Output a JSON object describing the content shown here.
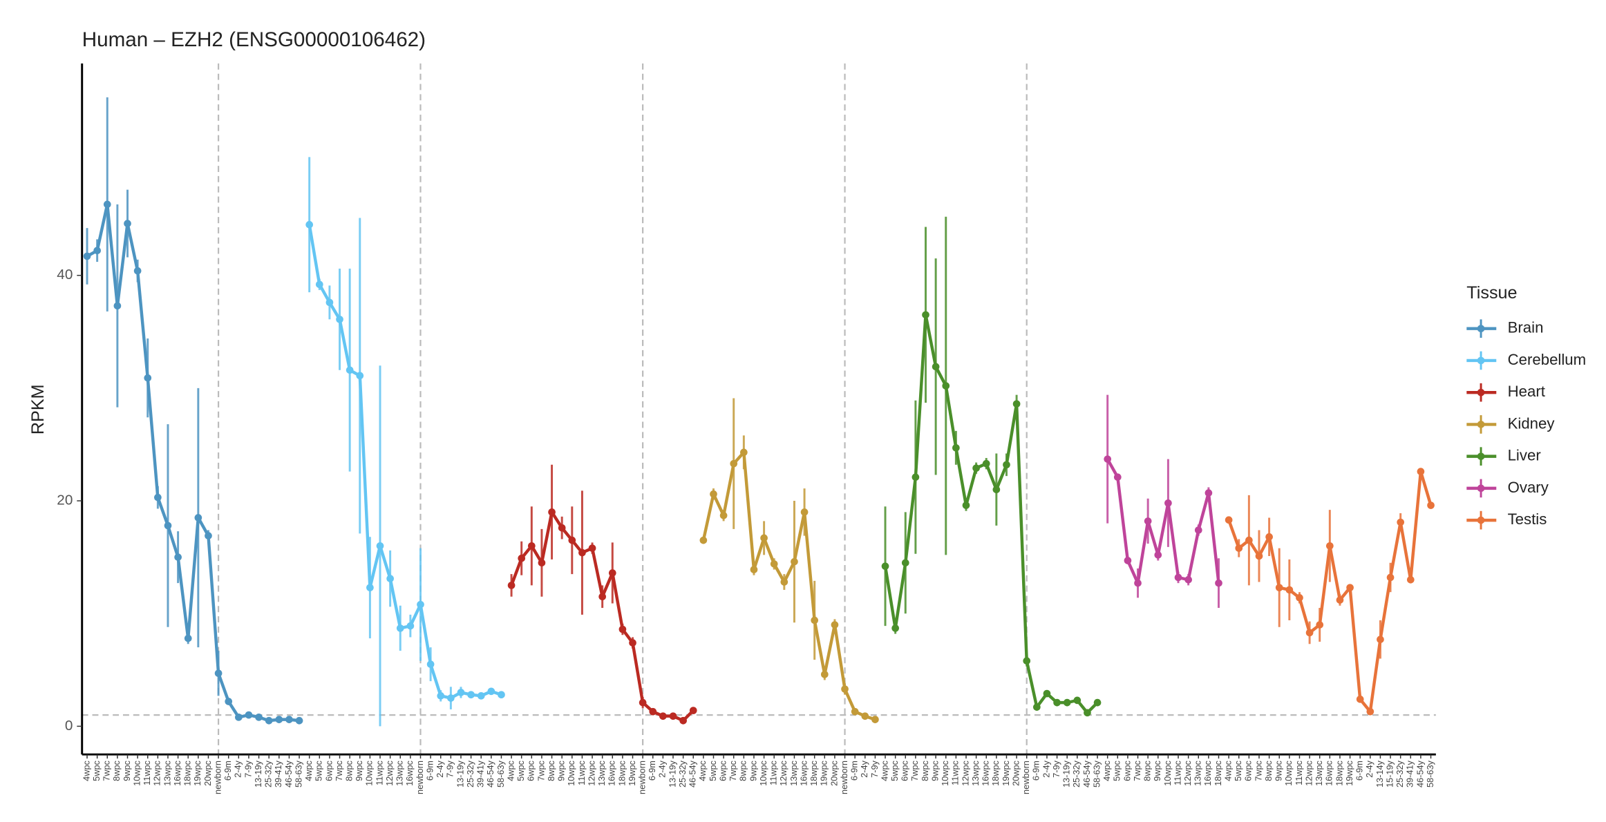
{
  "chart_data": {
    "type": "line",
    "title": "Human – EZH2 (ENSG00000106462)",
    "y_label": "RPKM",
    "legend_title": "Tissue",
    "legend": "right",
    "ylim": [
      -2.5,
      58.8
    ],
    "yticks": [
      0,
      20,
      40
    ],
    "hline": 1,
    "vline_category": "newborn",
    "series": [
      {
        "name": "Brain",
        "color": "#4d94c1",
        "categories": [
          "4wpc",
          "5wpc",
          "7wpc",
          "8wpc",
          "9wpc",
          "10wpc",
          "11wpc",
          "12wpc",
          "13wpc",
          "16wpc",
          "18wpc",
          "19wpc",
          "20wpc",
          "newborn",
          "6-9m",
          "2-4y",
          "7-9y",
          "13-19y",
          "25-32y",
          "39-41y",
          "46-54y",
          "58-63y"
        ],
        "values": [
          41.7,
          42.2,
          46.3,
          37.3,
          44.6,
          40.4,
          30.9,
          20.3,
          17.8,
          15.0,
          7.8,
          18.5,
          16.9,
          4.7,
          2.2,
          0.8,
          1.0,
          0.8,
          0.5,
          0.6,
          0.6,
          0.5
        ],
        "errors": [
          2.5,
          1,
          9.5,
          9,
          3,
          1,
          3.5,
          1,
          9,
          2.3,
          0.5,
          11.5,
          0.5,
          2,
          0.3,
          0.3,
          0.3,
          0.3,
          0.3,
          0.3,
          0.3,
          0.3
        ]
      },
      {
        "name": "Cerebellum",
        "color": "#63c5f3",
        "categories": [
          "4wpc",
          "5wpc",
          "6wpc",
          "7wpc",
          "8wpc",
          "9wpc",
          "10wpc",
          "11wpc",
          "12wpc",
          "13wpc",
          "16wpc",
          "newborn",
          "6-9m",
          "2-4y",
          "7-9y",
          "13-19y",
          "25-32y",
          "39-41y",
          "46-54y",
          "58-63y"
        ],
        "values": [
          44.5,
          39.2,
          37.6,
          36.1,
          31.6,
          31.1,
          12.3,
          16.0,
          13.1,
          8.7,
          8.9,
          10.8,
          5.5,
          2.7,
          2.5,
          3.0,
          2.8,
          2.7,
          3.1,
          2.8
        ],
        "errors": [
          6,
          0.5,
          1.5,
          4.5,
          9,
          14,
          4.5,
          16,
          2.5,
          2,
          1,
          5,
          1.5,
          0.5,
          1,
          0.5,
          0.3,
          0.3,
          0.3,
          0.3
        ]
      },
      {
        "name": "Heart",
        "color": "#bb2a22",
        "categories": [
          "4wpc",
          "5wpc",
          "6wpc",
          "7wpc",
          "8wpc",
          "9wpc",
          "10wpc",
          "11wpc",
          "12wpc",
          "13wpc",
          "16wpc",
          "18wpc",
          "19wpc",
          "newborn",
          "6-9m",
          "2-4y",
          "13-19y",
          "25-32y",
          "46-54y"
        ],
        "values": [
          12.5,
          14.9,
          16.0,
          14.5,
          19.0,
          17.6,
          16.5,
          15.4,
          15.8,
          11.5,
          13.6,
          8.6,
          7.4,
          2.1,
          1.3,
          0.9,
          0.9,
          0.5,
          1.4
        ],
        "errors": [
          1,
          1.5,
          3.5,
          3,
          4.2,
          1,
          3,
          5.5,
          0.5,
          1,
          2.7,
          0.5,
          0.5,
          0.5,
          0.3,
          0.3,
          0.3,
          0.3,
          0.3
        ]
      },
      {
        "name": "Kidney",
        "color": "#c39a38",
        "categories": [
          "4wpc",
          "5wpc",
          "6wpc",
          "7wpc",
          "8wpc",
          "9wpc",
          "10wpc",
          "11wpc",
          "12wpc",
          "13wpc",
          "16wpc",
          "18wpc",
          "19wpc",
          "20wpc",
          "newborn",
          "6-9m",
          "2-4y",
          "7-9y"
        ],
        "values": [
          16.5,
          20.6,
          18.7,
          23.3,
          24.3,
          13.9,
          16.7,
          14.4,
          12.8,
          14.6,
          19.0,
          9.4,
          4.6,
          9.0,
          3.3,
          1.3,
          0.9,
          0.6
        ],
        "errors": [
          0.3,
          0.5,
          0.5,
          5.8,
          1.5,
          0.5,
          1.5,
          0.5,
          0.7,
          5.4,
          2.1,
          3.5,
          0.5,
          0.5,
          0.5,
          0.3,
          0.3,
          0.3
        ]
      },
      {
        "name": "Liver",
        "color": "#4a8f2a",
        "categories": [
          "4wpc",
          "5wpc",
          "6wpc",
          "7wpc",
          "8wpc",
          "9wpc",
          "10wpc",
          "11wpc",
          "12wpc",
          "13wpc",
          "16wpc",
          "18wpc",
          "19wpc",
          "20wpc",
          "newborn",
          "6-9m",
          "2-4y",
          "7-9y",
          "13-19y",
          "25-32y",
          "46-54y",
          "58-63y"
        ],
        "values": [
          14.2,
          8.7,
          14.5,
          22.1,
          36.5,
          31.9,
          30.2,
          24.7,
          19.6,
          22.9,
          23.3,
          21.0,
          23.2,
          28.6,
          5.8,
          1.7,
          2.9,
          2.1,
          2.1,
          2.3,
          1.2,
          2.1
        ],
        "errors": [
          5.3,
          0.5,
          4.5,
          6.8,
          7.8,
          9.6,
          15,
          1.5,
          0.5,
          0.5,
          0.5,
          3.2,
          1,
          0.8,
          0.5,
          0.3,
          0.3,
          0.3,
          0.3,
          0.3,
          0.3,
          0.3
        ]
      },
      {
        "name": "Ovary",
        "color": "#bf449a",
        "categories": [
          "4wpc",
          "5wpc",
          "6wpc",
          "7wpc",
          "8wpc",
          "9wpc",
          "10wpc",
          "11wpc",
          "12wpc",
          "13wpc",
          "16wpc",
          "18wpc"
        ],
        "values": [
          23.7,
          22.1,
          14.7,
          12.7,
          18.2,
          15.2,
          19.8,
          13.2,
          13.0,
          17.4,
          20.7,
          12.7
        ],
        "errors": [
          5.7,
          0.3,
          0.3,
          1.3,
          2,
          0.5,
          3.9,
          0.5,
          0.5,
          0.5,
          0.5,
          2.2
        ]
      },
      {
        "name": "Testis",
        "color": "#e8733a",
        "categories": [
          "4wpc",
          "5wpc",
          "6wpc",
          "7wpc",
          "8wpc",
          "9wpc",
          "10wpc",
          "11wpc",
          "12wpc",
          "13wpc",
          "16wpc",
          "18wpc",
          "19wpc",
          "6-9m",
          "2-4y",
          "13-14y",
          "15-19y",
          "25-32y",
          "39-41y",
          "46-54y",
          "58-63y"
        ],
        "values": [
          18.3,
          15.8,
          16.5,
          15.1,
          16.8,
          12.3,
          12.1,
          11.4,
          8.3,
          9.0,
          16.0,
          11.2,
          12.3,
          2.4,
          1.3,
          7.7,
          13.2,
          18.1,
          13.0,
          22.6,
          19.6
        ],
        "errors": [
          0.3,
          0.8,
          4,
          2.3,
          1.7,
          3.5,
          2.7,
          0.5,
          1,
          1.5,
          3.2,
          0.5,
          0.3,
          0.3,
          0.3,
          1.7,
          1.3,
          0.8,
          0.3,
          0.3,
          0.3
        ]
      }
    ]
  }
}
